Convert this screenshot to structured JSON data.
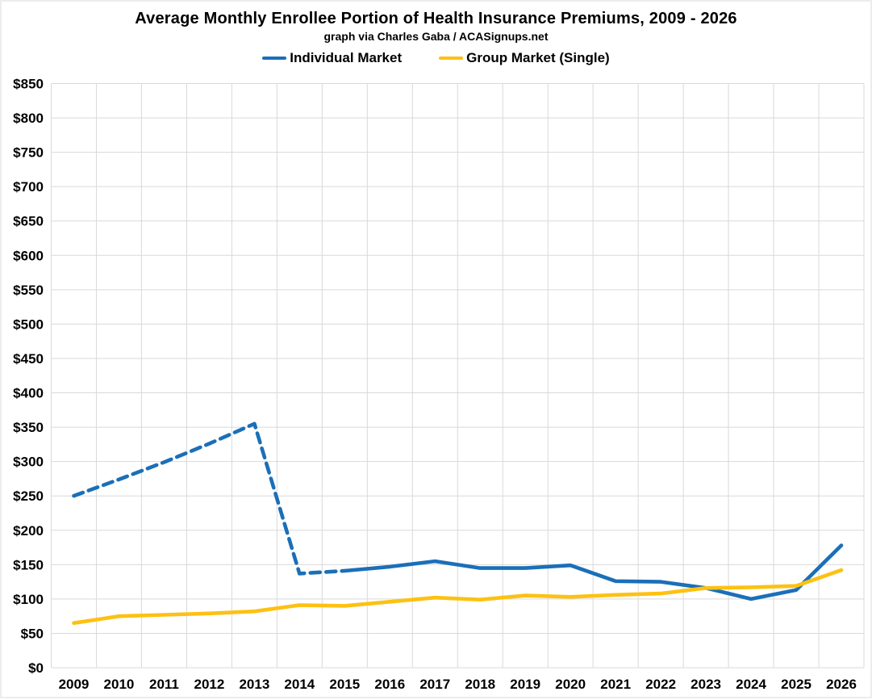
{
  "header": {
    "title": "Average Monthly Enrollee Portion of Health Insurance Premiums, 2009 - 2026",
    "subtitle": "graph via Charles Gaba / ACASignups.net"
  },
  "colors": {
    "individual_line": "#1b6fb8",
    "group_line": "#fdc112",
    "gridline": "#d9d9d9",
    "text": "#000000",
    "background": "#ffffff"
  },
  "chart_data": {
    "type": "line",
    "title": "Average Monthly Enrollee Portion of Health Insurance Premiums, 2009 - 2026",
    "subtitle": "graph via Charles Gaba / ACASignups.net",
    "legend_position": "top",
    "grid": true,
    "xlabel": "",
    "ylabel": "",
    "categories": [
      "2009",
      "2010",
      "2011",
      "2012",
      "2013",
      "2014",
      "2015",
      "2016",
      "2017",
      "2018",
      "2019",
      "2020",
      "2021",
      "2022",
      "2023",
      "2024",
      "2025",
      "2026"
    ],
    "y_axis": {
      "min": 0,
      "max": 850,
      "step": 50,
      "tick_prefix": "$",
      "ylim": [
        0,
        850
      ]
    },
    "series": [
      {
        "name": "Individual Market",
        "color": "#1b6fb8",
        "values": [
          250,
          274,
          299,
          326,
          355,
          137,
          141,
          147,
          155,
          145,
          145,
          149,
          126,
          125,
          116,
          100,
          113,
          178
        ],
        "line_style": "dashed through 2015, solid 2015-2026",
        "dashed_until_index": 6
      },
      {
        "name": "Group Market (Single)",
        "color": "#fdc112",
        "values": [
          65,
          75,
          77,
          79,
          82,
          91,
          90,
          96,
          102,
          99,
          105,
          103,
          106,
          108,
          116,
          117,
          119,
          142
        ],
        "line_style": "solid",
        "dashed_until_index": 0
      }
    ]
  }
}
